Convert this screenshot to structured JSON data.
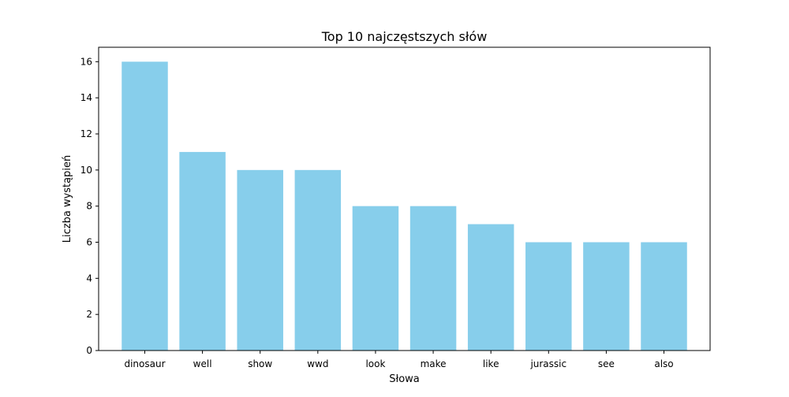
{
  "chart_data": {
    "type": "bar",
    "title": "Top 10 najczęstszych słów",
    "xlabel": "Słowa",
    "ylabel": "Liczba wystąpień",
    "categories": [
      "dinosaur",
      "well",
      "show",
      "wwd",
      "look",
      "make",
      "like",
      "jurassic",
      "see",
      "also"
    ],
    "values": [
      16,
      11,
      10,
      10,
      8,
      8,
      7,
      6,
      6,
      6
    ],
    "ylim": [
      0,
      16.8
    ],
    "yticks": [
      0,
      2,
      4,
      6,
      8,
      10,
      12,
      14,
      16
    ],
    "bar_color": "#87ceeb",
    "grid": false,
    "legend": "none"
  }
}
